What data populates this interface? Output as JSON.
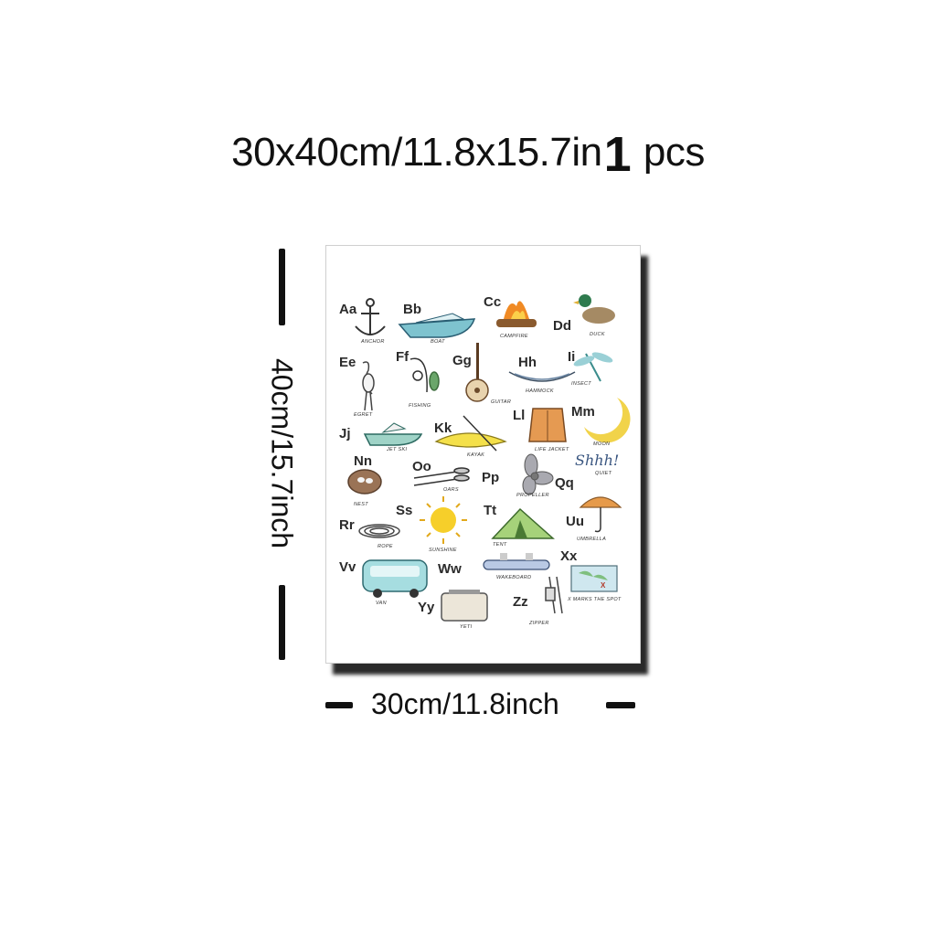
{
  "title": {
    "size": "30x40cm/11.8x15.7in",
    "qty_number": "1",
    "qty_unit": "pcs"
  },
  "dimensions": {
    "height_label": "40cm/15.7inch",
    "width_label": "30cm/11.8inch"
  },
  "alphabet": [
    {
      "letters": "Aa",
      "word": "ANCHOR"
    },
    {
      "letters": "Bb",
      "word": "BOAT"
    },
    {
      "letters": "Cc",
      "word": "CAMPFIRE"
    },
    {
      "letters": "Dd",
      "word": "DUCK"
    },
    {
      "letters": "Ee",
      "word": "EGRET"
    },
    {
      "letters": "Ff",
      "word": "FISHING"
    },
    {
      "letters": "Gg",
      "word": "GUITAR"
    },
    {
      "letters": "Hh",
      "word": "HAMMOCK"
    },
    {
      "letters": "Ii",
      "word": "INSECT"
    },
    {
      "letters": "Jj",
      "word": "JET SKI"
    },
    {
      "letters": "Kk",
      "word": "KAYAK"
    },
    {
      "letters": "Ll",
      "word": "LIFE JACKET"
    },
    {
      "letters": "Mm",
      "word": "MOON"
    },
    {
      "letters": "Nn",
      "word": "NEST"
    },
    {
      "letters": "Oo",
      "word": "OARS"
    },
    {
      "letters": "Pp",
      "word": "PROPELLER"
    },
    {
      "letters": "Qq",
      "word": "QUIET"
    },
    {
      "letters": "Rr",
      "word": "ROPE"
    },
    {
      "letters": "Ss",
      "word": "SUNSHINE"
    },
    {
      "letters": "Tt",
      "word": "TENT"
    },
    {
      "letters": "Uu",
      "word": "UMBRELLA"
    },
    {
      "letters": "Vv",
      "word": "VAN"
    },
    {
      "letters": "Ww",
      "word": "WAKEBOARD"
    },
    {
      "letters": "Xx",
      "word": "X MARKS THE SPOT"
    },
    {
      "letters": "Yy",
      "word": "YETI"
    },
    {
      "letters": "Zz",
      "word": "ZIPPER"
    }
  ],
  "shhh_text": "Shhh!"
}
